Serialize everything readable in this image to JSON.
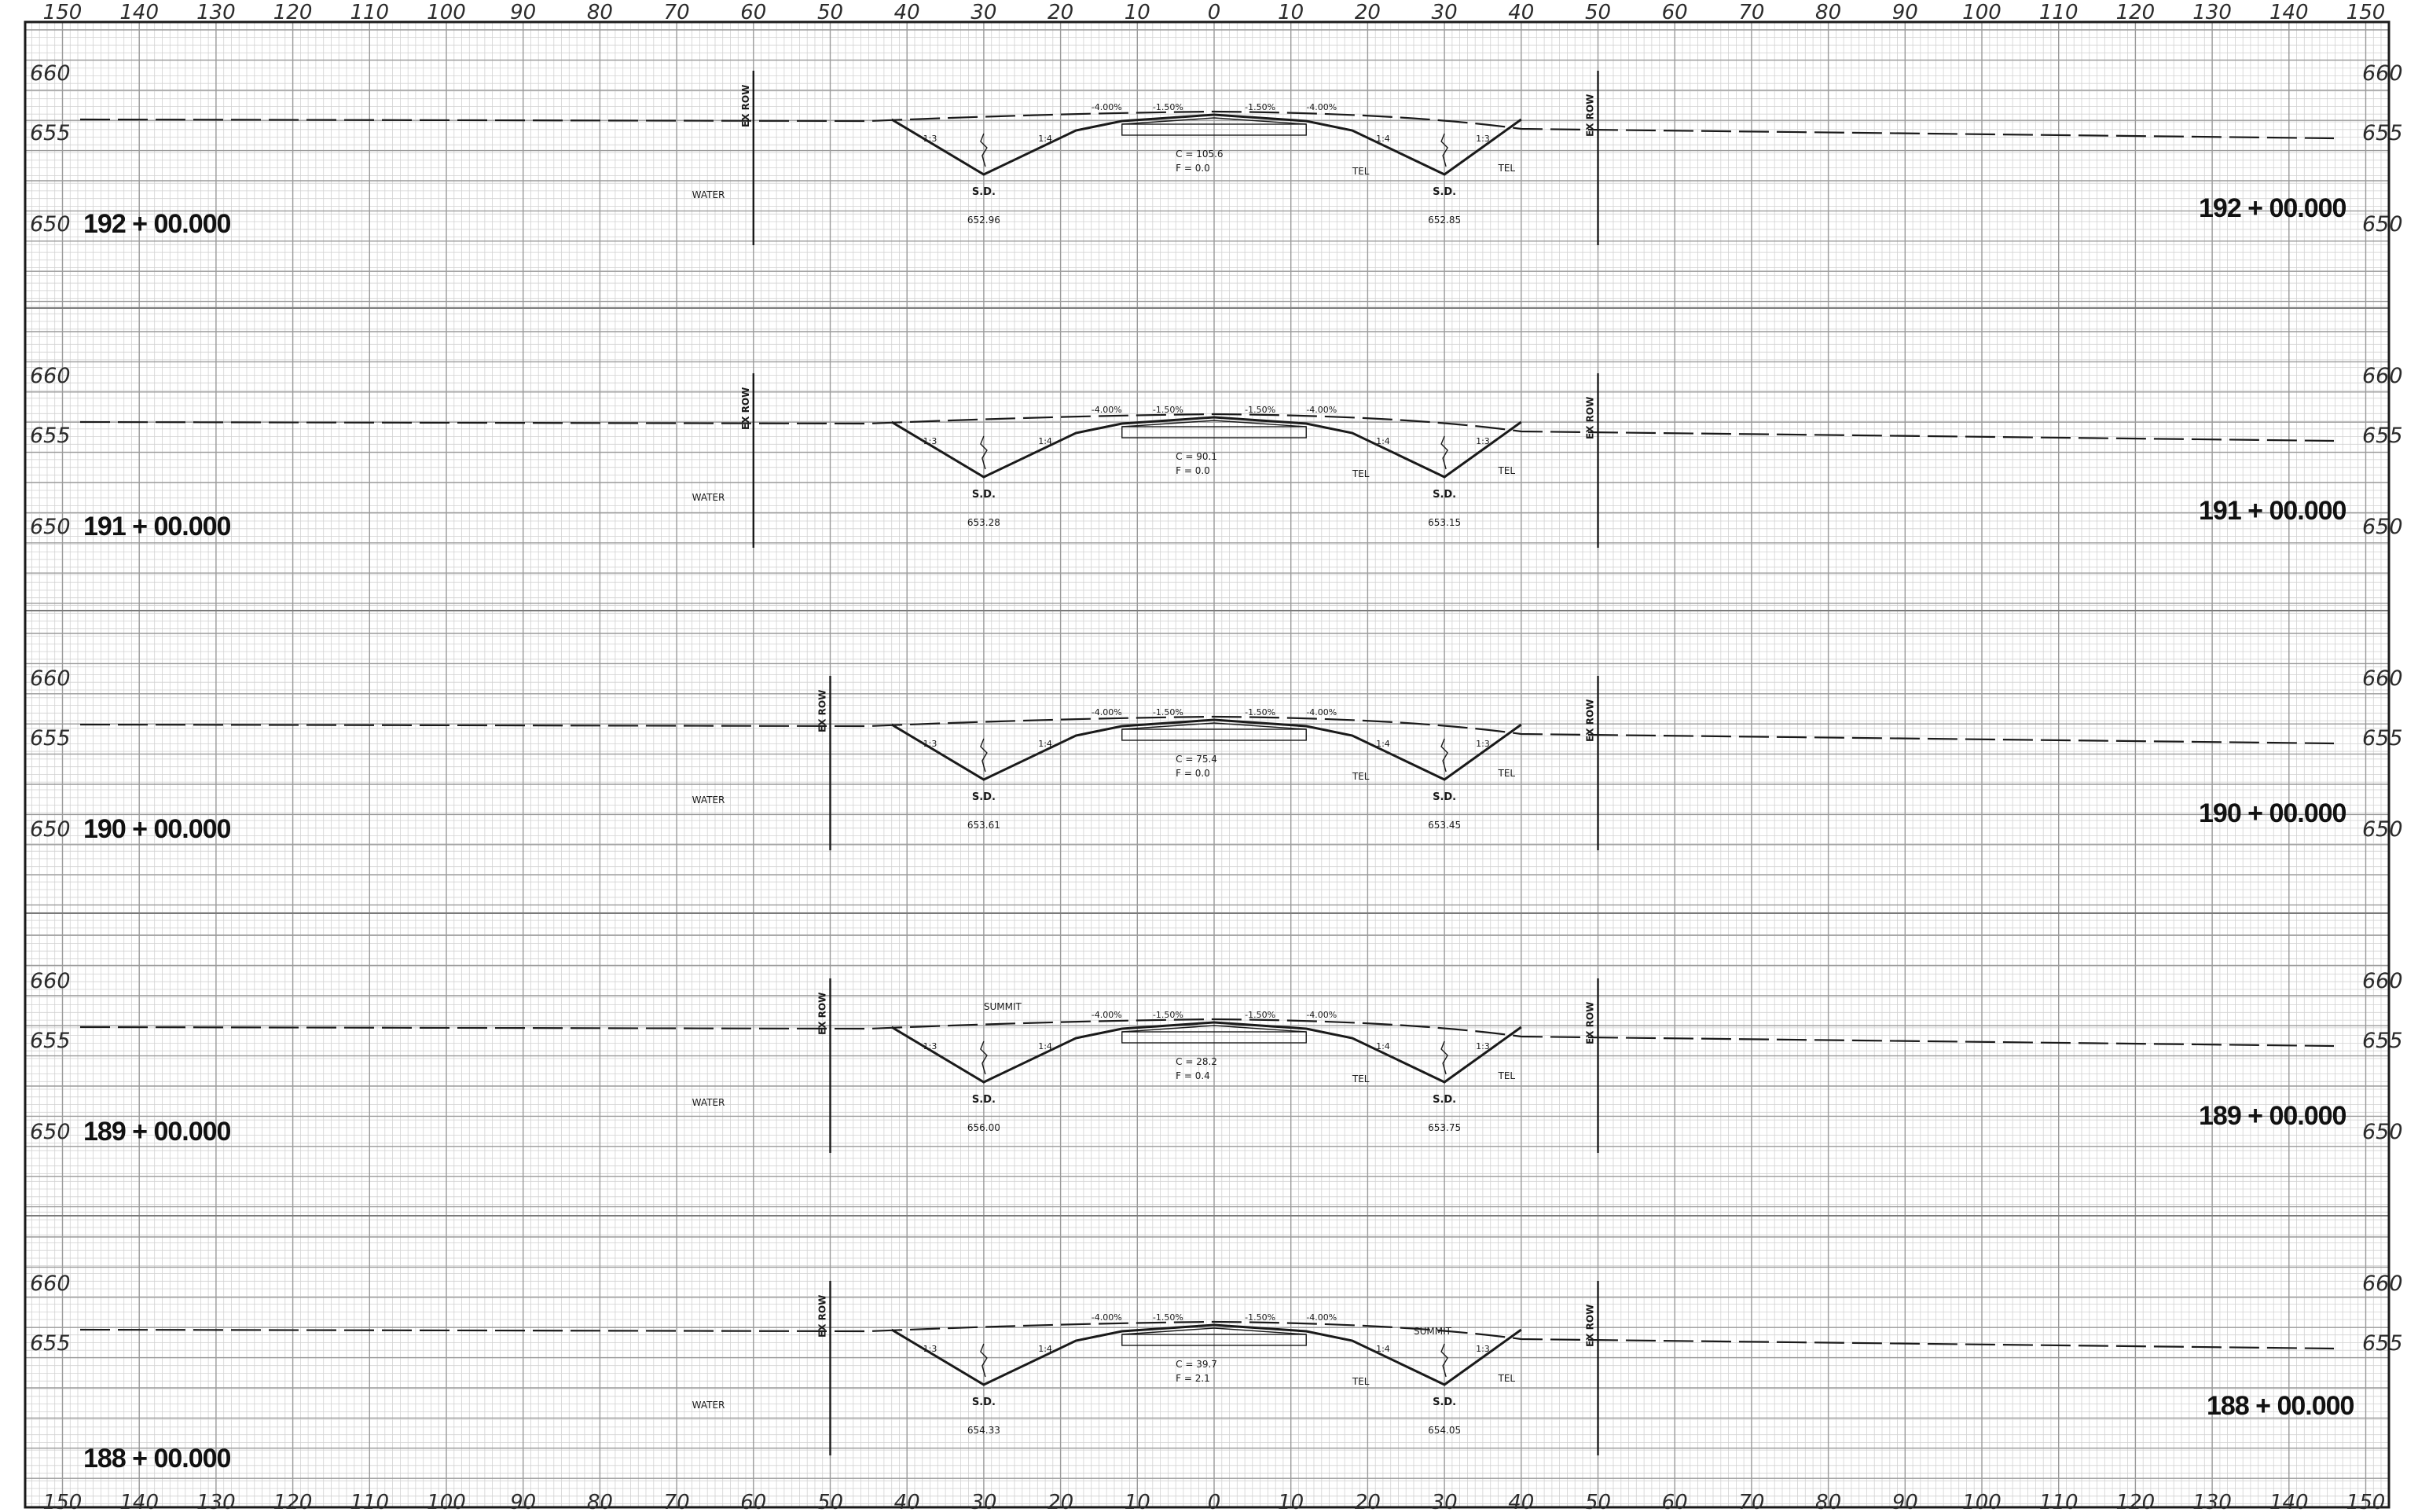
{
  "sheet": {
    "offset_ticks": [
      "150",
      "140",
      "130",
      "120",
      "110",
      "100",
      "90",
      "80",
      "70",
      "60",
      "50",
      "40",
      "30",
      "20",
      "10",
      "0",
      "10",
      "20",
      "30",
      "40",
      "50",
      "60",
      "70",
      "80",
      "90",
      "100",
      "110",
      "120",
      "130",
      "140",
      "150"
    ],
    "markers": {
      "ex_row": "EX ROW",
      "water": "WATER",
      "tel": "TEL",
      "sd": "S.D.",
      "summit": "SUMMIT",
      "slope_inner": "1:4",
      "slope_outer": "1:3",
      "grade_shoulder_left": "-4.00%",
      "grade_lane_left": "-1.50%",
      "grade_lane_right": "-1.50%",
      "grade_shoulder_right": "-4.00%"
    }
  },
  "sections": [
    {
      "station": "192 + 00.000",
      "elev_left": [
        "660",
        "655",
        "650"
      ],
      "elev_right": [
        "660",
        "655",
        "650"
      ],
      "cut": "C = 105.6",
      "fill": "F = 0.0",
      "sd_left": "652.96",
      "sd_right": "652.85",
      "summit_left": false,
      "summit_right": false
    },
    {
      "station": "191 + 00.000",
      "elev_left": [
        "660",
        "655",
        "650"
      ],
      "elev_right": [
        "660",
        "655",
        "650"
      ],
      "cut": "C = 90.1",
      "fill": "F = 0.0",
      "sd_left": "653.28",
      "sd_right": "653.15",
      "summit_left": false,
      "summit_right": false
    },
    {
      "station": "190 + 00.000",
      "elev_left": [
        "660",
        "655",
        "650"
      ],
      "elev_right": [
        "660",
        "655",
        "650"
      ],
      "cut": "C = 75.4",
      "fill": "F = 0.0",
      "sd_left": "653.61",
      "sd_right": "653.45",
      "summit_left": false,
      "summit_right": false
    },
    {
      "station": "189 + 00.000",
      "elev_left": [
        "660",
        "655",
        "650"
      ],
      "elev_right": [
        "660",
        "655",
        "650"
      ],
      "cut": "C = 28.2",
      "fill": "F = 0.4",
      "sd_left": "656.00",
      "sd_right": "653.75",
      "summit_left": true,
      "summit_right": false
    },
    {
      "station": "188 + 00.000",
      "elev_left": [
        "660",
        "655"
      ],
      "elev_right": [
        "660",
        "655"
      ],
      "cut": "C = 39.7",
      "fill": "F = 2.1",
      "sd_left": "654.33",
      "sd_right": "654.05",
      "summit_left": false,
      "summit_right": true
    }
  ],
  "colors": {
    "paper": "#ffffff",
    "fine_grid": "#d2d2d2",
    "major_grid": "#9a9a9a",
    "linework": "#1a1a1a"
  }
}
